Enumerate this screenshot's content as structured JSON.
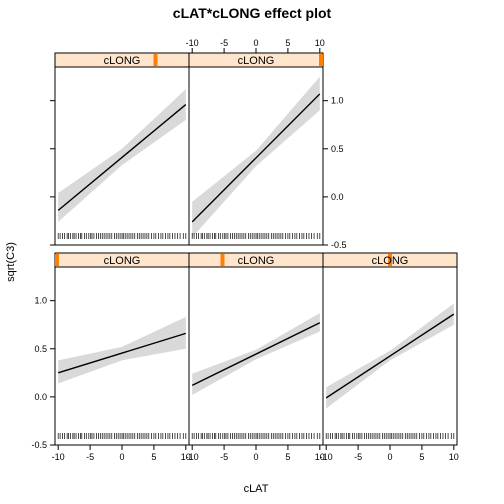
{
  "chart_data": {
    "type": "line",
    "title": "cLAT*cLONG effect plot",
    "xlabel": "cLAT",
    "ylabel": "sqrt(C3)",
    "xlim": [
      -10.5,
      10.5
    ],
    "ylim": [
      -0.5,
      1.35
    ],
    "x_ticks": [
      -10,
      -5,
      0,
      5,
      10
    ],
    "y_ticks": [
      -0.5,
      0.0,
      0.5,
      1.0
    ],
    "x_tick_labels": [
      "-10",
      "-5",
      "0",
      "5",
      "10"
    ],
    "y_tick_labels": [
      "-0.5",
      "0.0",
      "0.5",
      "1.0"
    ],
    "grid": false,
    "strip_label": "cLONG",
    "panels": [
      {
        "row": 0,
        "col": 0,
        "strip_marker": 0.75,
        "fit": [
          [
            -10,
            -0.14
          ],
          [
            10,
            0.96
          ]
        ],
        "lower": [
          [
            -10,
            -0.26
          ],
          [
            0,
            0.33
          ],
          [
            10,
            0.8
          ]
        ],
        "upper": [
          [
            -10,
            0.04
          ],
          [
            0,
            0.5
          ],
          [
            10,
            1.12
          ]
        ]
      },
      {
        "row": 0,
        "col": 1,
        "strip_marker": 1.0,
        "fit": [
          [
            -10,
            -0.26
          ],
          [
            10,
            1.07
          ]
        ],
        "lower": [
          [
            -10,
            -0.42
          ],
          [
            0,
            0.32
          ],
          [
            10,
            0.9
          ]
        ],
        "upper": [
          [
            -10,
            -0.05
          ],
          [
            0,
            0.48
          ],
          [
            10,
            1.25
          ]
        ]
      },
      {
        "row": 1,
        "col": 0,
        "strip_marker": 0.0,
        "fit": [
          [
            -10,
            0.25
          ],
          [
            10,
            0.66
          ]
        ],
        "lower": [
          [
            -10,
            0.14
          ],
          [
            0,
            0.38
          ],
          [
            10,
            0.5
          ]
        ],
        "upper": [
          [
            -10,
            0.38
          ],
          [
            0,
            0.52
          ],
          [
            10,
            0.83
          ]
        ]
      },
      {
        "row": 1,
        "col": 1,
        "strip_marker": 0.25,
        "fit": [
          [
            -10,
            0.12
          ],
          [
            10,
            0.77
          ]
        ],
        "lower": [
          [
            -10,
            0.02
          ],
          [
            0,
            0.39
          ],
          [
            10,
            0.68
          ]
        ],
        "upper": [
          [
            -10,
            0.24
          ],
          [
            0,
            0.49
          ],
          [
            10,
            0.87
          ]
        ]
      },
      {
        "row": 1,
        "col": 2,
        "strip_marker": 0.5,
        "fit": [
          [
            -10,
            -0.01
          ],
          [
            10,
            0.86
          ]
        ],
        "lower": [
          [
            -10,
            -0.12
          ],
          [
            0,
            0.38
          ],
          [
            10,
            0.75
          ]
        ],
        "upper": [
          [
            -10,
            0.1
          ],
          [
            0,
            0.48
          ],
          [
            10,
            0.97
          ]
        ]
      }
    ],
    "rug_x": [
      -10,
      -9.7,
      -9.3,
      -9.0,
      -8.6,
      -8.4,
      -8.1,
      -7.7,
      -7.5,
      -7.2,
      -6.8,
      -6.5,
      -6.3,
      -5.9,
      -5.6,
      -5.2,
      -4.9,
      -4.7,
      -4.4,
      -4.0,
      -3.7,
      -3.4,
      -3.1,
      -2.8,
      -2.5,
      -2.2,
      -1.9,
      -1.6,
      -1.2,
      -0.9,
      -0.6,
      -0.3,
      0.0,
      0.2,
      0.5,
      0.8,
      1.1,
      1.4,
      1.7,
      2.0,
      2.4,
      2.7,
      3.0,
      3.3,
      3.6,
      3.9,
      4.2,
      4.6,
      5.0,
      5.3,
      5.7,
      6.1,
      6.4,
      6.8,
      7.2,
      7.5,
      7.9,
      8.3,
      8.7,
      9.1,
      9.6,
      10
    ]
  }
}
